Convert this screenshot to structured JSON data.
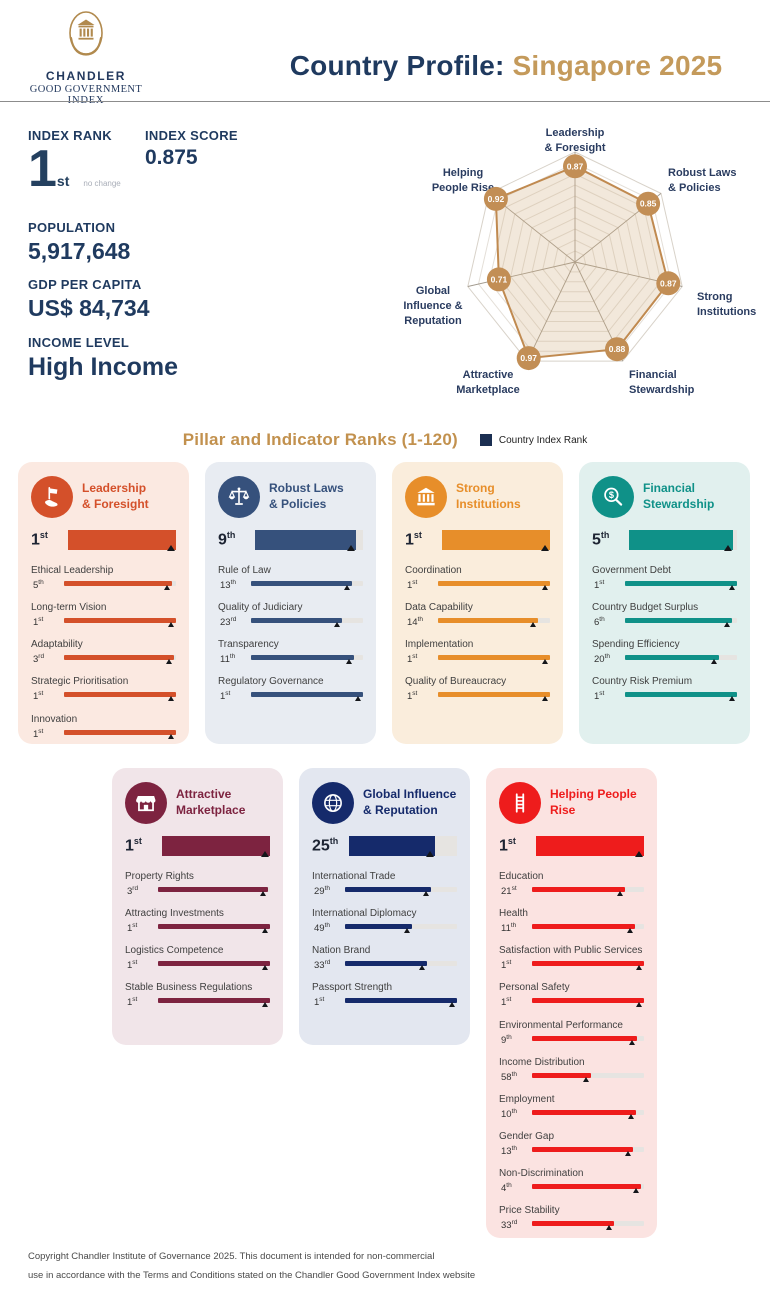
{
  "colors": {
    "navy": "#1F3A5F",
    "gold": "#C49A5B",
    "legend_swatch": "#1B2F52",
    "bar_track": "#E6E4E1",
    "marker": "#14161A"
  },
  "header": {
    "logo": {
      "emblem_icon": "temple-in-hands-emblem-icon",
      "line1": "CHANDLER",
      "line2": "GOOD GOVERNMENT",
      "line3": "INDEX"
    },
    "title_prefix": "Country Profile:",
    "title_country": "Singapore 2025"
  },
  "stats": {
    "index_rank": {
      "label": "INDEX RANK",
      "value": "1",
      "suffix": "st",
      "change": "no change"
    },
    "index_score": {
      "label": "INDEX SCORE",
      "value": "0.875"
    },
    "population": {
      "label": "POPULATION",
      "value": "5,917,648"
    },
    "gdp_per_capita": {
      "label": "GDP PER CAPITA",
      "value": "US$ 84,734"
    },
    "income_level": {
      "label": "INCOME LEVEL",
      "value": "High Income"
    }
  },
  "chart_data": {
    "type": "radar",
    "title": "CGGI pillar scores",
    "max": 1.0,
    "rings": 10,
    "stroke_color": "#C08A50",
    "fill_color": "rgba(207,172,124,0.28)",
    "point_color": "#C28E55",
    "label_color": "#2A3C60",
    "axes": [
      {
        "label": "Leadership & Foresight",
        "label_lines": [
          "Leadership",
          "& Foresight"
        ],
        "value": 0.87
      },
      {
        "label": "Robust Laws & Policies",
        "label_lines": [
          "Robust Laws",
          "& Policies"
        ],
        "value": 0.85
      },
      {
        "label": "Strong Institutions",
        "label_lines": [
          "Strong",
          "Institutions"
        ],
        "value": 0.87
      },
      {
        "label": "Financial Stewardship",
        "label_lines": [
          "Financial",
          "Stewardship"
        ],
        "value": 0.88
      },
      {
        "label": "Attractive Marketplace",
        "label_lines": [
          "Attractive",
          "Marketplace"
        ],
        "value": 0.97
      },
      {
        "label": "Global Influence & Reputation",
        "label_lines": [
          "Global",
          "Influence &",
          "Reputation"
        ],
        "value": 0.71
      },
      {
        "label": "Helping People Rise",
        "label_lines": [
          "Helping",
          "People Rise"
        ],
        "value": 0.92
      }
    ]
  },
  "ranks": {
    "section_title": "Pillar and Indicator Ranks (1-120)",
    "legend_label": "Country Index Rank",
    "scale_max": 120
  },
  "pillars": [
    {
      "name": "Leadership & Foresight",
      "title_lines": [
        "Leadership",
        "& Foresight"
      ],
      "icon": "flag-hand-icon",
      "accent_color": "#D4502A",
      "bg_color": "#FBE9E1",
      "rank": 1,
      "rank_suffix": "st",
      "indicators": [
        {
          "label": "Ethical Leadership",
          "rank": 5,
          "suffix": "th"
        },
        {
          "label": "Long-term Vision",
          "rank": 1,
          "suffix": "st"
        },
        {
          "label": "Adaptability",
          "rank": 3,
          "suffix": "rd"
        },
        {
          "label": "Strategic Prioritisation",
          "rank": 1,
          "suffix": "st"
        },
        {
          "label": "Innovation",
          "rank": 1,
          "suffix": "st"
        }
      ]
    },
    {
      "name": "Robust Laws & Policies",
      "title_lines": [
        "Robust Laws",
        "& Policies"
      ],
      "icon": "scales-icon",
      "accent_color": "#36517C",
      "bg_color": "#E8ECF2",
      "rank": 9,
      "rank_suffix": "th",
      "indicators": [
        {
          "label": "Rule of Law",
          "rank": 13,
          "suffix": "th"
        },
        {
          "label": "Quality of Judiciary",
          "rank": 23,
          "suffix": "rd"
        },
        {
          "label": "Transparency",
          "rank": 11,
          "suffix": "th"
        },
        {
          "label": "Regulatory Governance",
          "rank": 1,
          "suffix": "st"
        }
      ]
    },
    {
      "name": "Strong Institutions",
      "title_lines": [
        "Strong Institutions"
      ],
      "icon": "bank-icon",
      "accent_color": "#E78E2A",
      "bg_color": "#FAEDDC",
      "rank": 1,
      "rank_suffix": "st",
      "indicators": [
        {
          "label": "Coordination",
          "rank": 1,
          "suffix": "st"
        },
        {
          "label": "Data Capability",
          "rank": 14,
          "suffix": "th"
        },
        {
          "label": "Implementation",
          "rank": 1,
          "suffix": "st"
        },
        {
          "label": "Quality of Bureaucracy",
          "rank": 1,
          "suffix": "st"
        }
      ]
    },
    {
      "name": "Financial Stewardship",
      "title_lines": [
        "Financial",
        "Stewardship"
      ],
      "icon": "magnifier-dollar-icon",
      "accent_color": "#0F9188",
      "bg_color": "#E1F0EE",
      "rank": 5,
      "rank_suffix": "th",
      "indicators": [
        {
          "label": "Government Debt",
          "rank": 1,
          "suffix": "st"
        },
        {
          "label": "Country Budget Surplus",
          "rank": 6,
          "suffix": "th"
        },
        {
          "label": "Spending Efficiency",
          "rank": 20,
          "suffix": "th"
        },
        {
          "label": "Country Risk Premium",
          "rank": 1,
          "suffix": "st"
        }
      ]
    },
    {
      "name": "Attractive Marketplace",
      "title_lines": [
        "Attractive",
        "Marketplace"
      ],
      "icon": "storefront-icon",
      "accent_color": "#7D2340",
      "bg_color": "#F1E5E9",
      "rank": 1,
      "rank_suffix": "st",
      "indicators": [
        {
          "label": "Property Rights",
          "rank": 3,
          "suffix": "rd"
        },
        {
          "label": "Attracting Investments",
          "rank": 1,
          "suffix": "st"
        },
        {
          "label": "Logistics Competence",
          "rank": 1,
          "suffix": "st"
        },
        {
          "label": "Stable Business Regulations",
          "rank": 1,
          "suffix": "st"
        }
      ]
    },
    {
      "name": "Global Influence & Reputation",
      "title_lines": [
        "Global Influence",
        "& Reputation"
      ],
      "icon": "globe-icon",
      "accent_color": "#152A6B",
      "bg_color": "#E3E7F0",
      "rank": 25,
      "rank_suffix": "th",
      "indicators": [
        {
          "label": "International Trade",
          "rank": 29,
          "suffix": "th"
        },
        {
          "label": "International Diplomacy",
          "rank": 49,
          "suffix": "th"
        },
        {
          "label": "Nation Brand",
          "rank": 33,
          "suffix": "rd"
        },
        {
          "label": "Passport Strength",
          "rank": 1,
          "suffix": "st"
        }
      ]
    },
    {
      "name": "Helping People Rise",
      "title_lines": [
        "Helping People",
        "Rise"
      ],
      "icon": "ladder-icon",
      "accent_color": "#EE1C1C",
      "bg_color": "#FBE3E1",
      "rank": 1,
      "rank_suffix": "st",
      "indicators": [
        {
          "label": "Education",
          "rank": 21,
          "suffix": "st"
        },
        {
          "label": "Health",
          "rank": 11,
          "suffix": "th"
        },
        {
          "label": "Satisfaction with Public Services",
          "rank": 1,
          "suffix": "st"
        },
        {
          "label": "Personal Safety",
          "rank": 1,
          "suffix": "st"
        },
        {
          "label": "Environmental Performance",
          "rank": 9,
          "suffix": "th"
        },
        {
          "label": "Income Distribution",
          "rank": 58,
          "suffix": "th"
        },
        {
          "label": "Employment",
          "rank": 10,
          "suffix": "th"
        },
        {
          "label": "Gender Gap",
          "rank": 13,
          "suffix": "th"
        },
        {
          "label": "Non-Discrimination",
          "rank": 4,
          "suffix": "th"
        },
        {
          "label": "Price Stability",
          "rank": 33,
          "suffix": "rd"
        }
      ]
    }
  ],
  "footer": {
    "line1": "Copyright Chandler Institute of Governance 2025. This document is intended for non-commercial",
    "line2": "use in accordance with the Terms and Conditions stated on the Chandler Good Government Index website"
  }
}
